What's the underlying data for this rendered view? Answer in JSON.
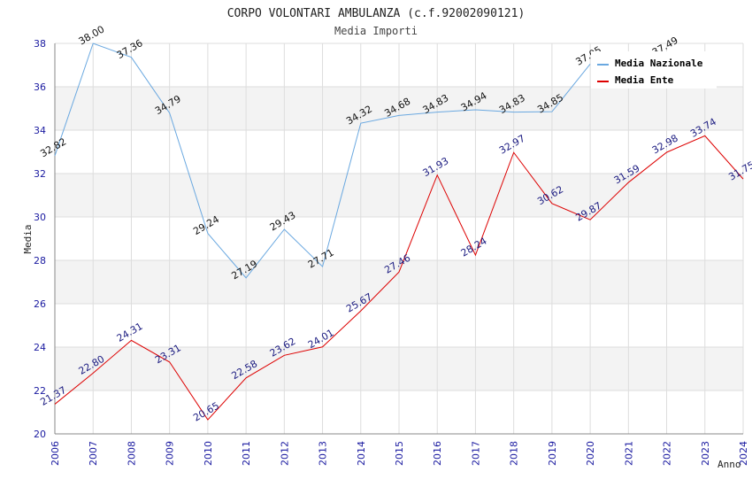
{
  "chart_data": {
    "type": "line",
    "title": "CORPO VOLONTARI AMBULANZA (c.f.92002090121)",
    "subtitle": "Media Importi",
    "xlabel": "Anno",
    "ylabel": "Media",
    "ylim": [
      20,
      38
    ],
    "yticks": [
      "20",
      "22",
      "24",
      "26",
      "28",
      "30",
      "32",
      "34",
      "36",
      "38"
    ],
    "categories": [
      "2006",
      "2007",
      "2008",
      "2009",
      "2010",
      "2011",
      "2012",
      "2013",
      "2014",
      "2015",
      "2016",
      "2017",
      "2018",
      "2019",
      "2020",
      "2021",
      "2022",
      "2023",
      "2024"
    ],
    "grid": true,
    "legend_position": "top-right",
    "series": [
      {
        "name": "Media Nazionale",
        "color": "#6aa8e0",
        "values": [
          32.82,
          38.0,
          37.36,
          34.79,
          29.24,
          27.19,
          29.43,
          27.71,
          34.32,
          34.68,
          34.83,
          34.94,
          34.83,
          34.85,
          37.05,
          null,
          37.49,
          null,
          null
        ],
        "labels": [
          "32.82",
          "38.00",
          "37.36",
          "34.79",
          "29.24",
          "27.19",
          "29.43",
          "27.71",
          "34.32",
          "34.68",
          "34.83",
          "34.94",
          "34.83",
          "34.85",
          "37.05",
          null,
          "37.49",
          null,
          null
        ]
      },
      {
        "name": "Media Ente",
        "color": "#dd0000",
        "values": [
          21.37,
          22.8,
          24.31,
          23.31,
          20.65,
          22.58,
          23.62,
          24.01,
          25.67,
          27.46,
          31.93,
          28.24,
          32.97,
          30.62,
          29.87,
          31.59,
          32.98,
          33.74,
          31.75
        ],
        "labels": [
          "21.37",
          "22.80",
          "24.31",
          "23.31",
          "20.65",
          "22.58",
          "23.62",
          "24.01",
          "25.67",
          "27.46",
          "31.93",
          "28.24",
          "32.97",
          "30.62",
          "29.87",
          "31.59",
          "32.98",
          "33.74",
          "31.75"
        ]
      }
    ]
  }
}
